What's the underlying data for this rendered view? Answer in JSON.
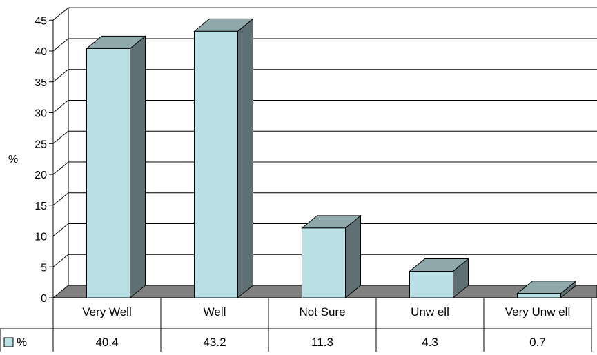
{
  "chart_data": {
    "type": "bar",
    "style": "3d-column",
    "title": "",
    "xlabel": "",
    "ylabel": "%",
    "ylim": [
      0,
      45
    ],
    "yticks": [
      0,
      5,
      10,
      15,
      20,
      25,
      30,
      35,
      40,
      45
    ],
    "grid": true,
    "categories": [
      "Very Well",
      "Well",
      "Not Sure",
      "Unw ell",
      "Very Unw ell"
    ],
    "series": [
      {
        "name": "%",
        "values": [
          40.4,
          43.2,
          11.3,
          4.3,
          0.7
        ]
      }
    ],
    "data_table": true,
    "colors": {
      "bar_front": "#b9e0e4",
      "bar_top": "#8fa8ac",
      "bar_side": "#5f7074",
      "floor": "#808080",
      "grid": "#000000"
    }
  }
}
